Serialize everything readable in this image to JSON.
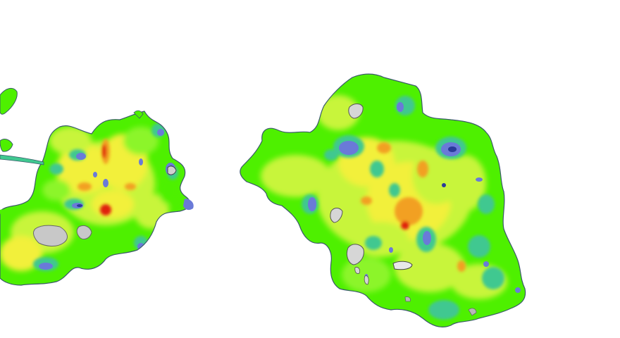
{
  "image": {
    "kind": "false-color heat map of two irregular blob-shaped regions on a white background",
    "background": "#ffffff"
  },
  "palette": {
    "green": "#4ef000",
    "light_green": "#8cf52a",
    "yellow_green": "#c8f53a",
    "yellow": "#f2f03a",
    "orange": "#f2a020",
    "red": "#e02010",
    "teal": "#40c890",
    "blue": "#6a7ad8",
    "dark_blue": "#2a3a9a",
    "gray": "#b8b8b8",
    "light_gray": "#e8e8e8",
    "outline": "#3a5a6a"
  }
}
